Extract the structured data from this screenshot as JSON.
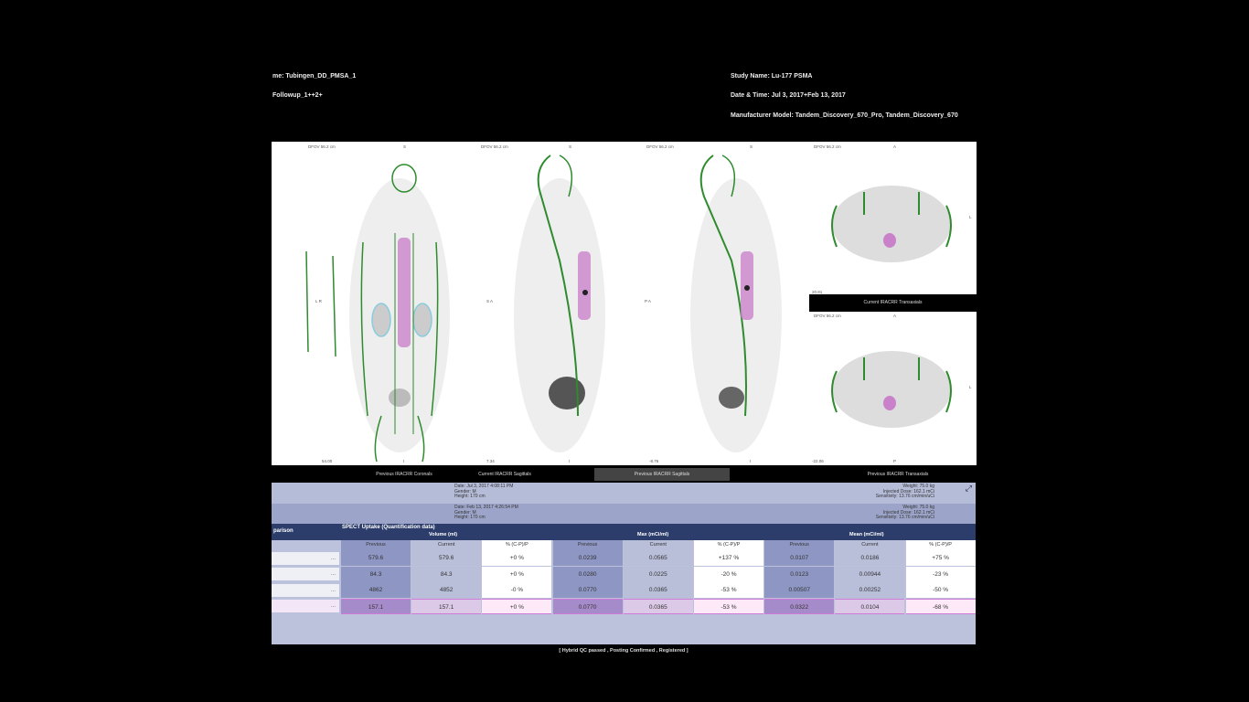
{
  "header": {
    "patient_name": "me: Tubingen_DD_PMSA_1",
    "followup": "Followup_1++2+",
    "study_name": "Study Name: Lu-177 PSMA",
    "date_time": "Date & Time: Jul 3, 2017+Feb 13, 2017",
    "manufacturer": "Manufacturer Model: Tandem_Discovery_670_Pro, Tandem_Discovery_670"
  },
  "viewer": {
    "panels": [
      {
        "dfov": "DFOV 56.2 cm",
        "top": "S",
        "bottom": "I",
        "side": "L R",
        "slice": "54.00"
      },
      {
        "dfov": "DFOV 56.2 cm",
        "top": "S",
        "bottom": "I",
        "side": "S A",
        "slice": "7.34"
      },
      {
        "dfov": "DFOV 56.2 cm",
        "top": "S",
        "bottom": "I",
        "side": "P A",
        "slice": "-8.76"
      },
      {
        "dfov": "DFOV 56.2 cm",
        "top": "A",
        "bottom": "",
        "side": "L",
        "slice": "20.81"
      },
      {
        "dfov": "DFOV 56.2 cm",
        "top": "A",
        "bottom": "P",
        "side": "L",
        "slice": "-22.06"
      }
    ],
    "transaxial_current_label": "Current IRACRR Transaxials",
    "labels": [
      "Previous IRACRR Coronals",
      "Current IRACRR Sagittals",
      "Previous IRACRR Sagittals",
      "Previous IRACRR Transaxials"
    ],
    "active_label_index": 2
  },
  "table": {
    "study1": {
      "date": "Date: Jul 3, 2017 4:08:11 PM",
      "gender": "Gender: M",
      "height": "Height: 170 cm",
      "weight": "Weight: 75.0 kg",
      "dose": "Injected Dose: 162.1 mCi",
      "sensitivity": "Sensitivity: 13.76 cm/min/uCi"
    },
    "study2": {
      "date": "Date: Feb 13, 2017 4:26:54 PM",
      "gender": "Gender: M",
      "height": "Height: 170 cm",
      "weight": "Weight: 75.0 kg",
      "dose": "Injected Dose: 162.1 mCi",
      "sensitivity": "Sensitivity: 13.76 cm/min/uCi"
    },
    "comparison_label": "parison",
    "title": "SPECT Uptake (Quantification data)",
    "groups": [
      "Volume (ml)",
      "Max (mCi/ml)",
      "Mean (mCi/ml)"
    ],
    "subheaders": [
      "Previous",
      "Current",
      "% (C-P)/P"
    ],
    "rows": [
      {
        "name": "...",
        "values": [
          "579.6",
          "579.6",
          "+0 %",
          "0.0239",
          "0.0565",
          "+137 %",
          "0.0107",
          "0.0186",
          "+75 %"
        ],
        "highlight": false
      },
      {
        "name": "...",
        "values": [
          "84.3",
          "84.3",
          "+0 %",
          "0.0280",
          "0.0225",
          "-20 %",
          "0.0123",
          "0.00944",
          "-23 %"
        ],
        "highlight": false
      },
      {
        "name": "...",
        "values": [
          "4862",
          "4852",
          "-0 %",
          "0.0770",
          "0.0365",
          "-53 %",
          "0.00507",
          "0.00252",
          "-50 %"
        ],
        "highlight": false
      },
      {
        "name": "...",
        "values": [
          "157.1",
          "157.1",
          "+0 %",
          "0.0770",
          "0.0365",
          "-53 %",
          "0.0322",
          "0.0104",
          "-68 %"
        ],
        "highlight": true
      }
    ],
    "colors": {
      "previous": "#8e96c3",
      "current": "#b9bed9",
      "percent": "#ffffff",
      "hl_previous": "#a58bc9",
      "hl_current": "#dcc9e8",
      "hl_percent": "#fde9f8",
      "title_bar": "#2c3d6b"
    }
  },
  "status": "[ Hybrid QC passed , Posting Confirmed , Registered ]"
}
